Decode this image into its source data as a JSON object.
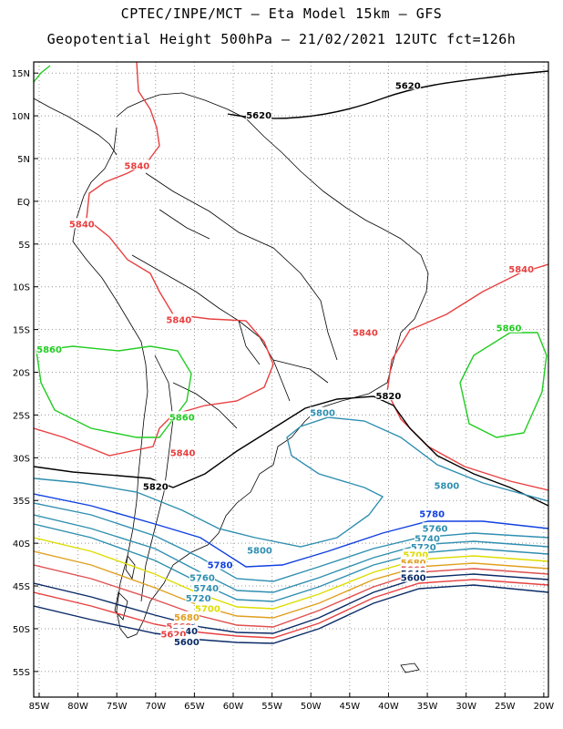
{
  "title_line1": "CPTEC/INPE/MCT –  Eta Model 15km – GFS",
  "title_line2": "Geopotential Height 500hPa – 21/02/2021 12UTC fct=126h",
  "lat_labels": [
    "15N",
    "10N",
    "5N",
    "EQ",
    "5S",
    "10S",
    "15S",
    "20S",
    "25S",
    "30S",
    "35S",
    "40S",
    "45S",
    "50S",
    "55S"
  ],
  "lon_labels": [
    "85W",
    "80W",
    "75W",
    "70W",
    "65W",
    "60W",
    "55W",
    "50W",
    "45W",
    "40W",
    "35W",
    "30W",
    "25W",
    "20W"
  ],
  "contour_labels": [
    {
      "text": "5620",
      "color": "#000000",
      "lon": -37.5,
      "lat": 13.6
    },
    {
      "text": "5620",
      "color": "#000000",
      "lon": -56.7,
      "lat": 10.1
    },
    {
      "text": "5840",
      "color": "#e84040",
      "lon": -72.4,
      "lat": 4.2
    },
    {
      "text": "5840",
      "color": "#e84040",
      "lon": -79.5,
      "lat": -2.6
    },
    {
      "text": "5840",
      "color": "#e84040",
      "lon": -67.0,
      "lat": -13.8
    },
    {
      "text": "5840",
      "color": "#e84040",
      "lon": -43.0,
      "lat": -15.3
    },
    {
      "text": "5840",
      "color": "#e84040",
      "lon": -22.9,
      "lat": -7.9
    },
    {
      "text": "5840",
      "color": "#e84040",
      "lon": -66.5,
      "lat": -29.4
    },
    {
      "text": "5860",
      "color": "#22cc22",
      "lon": -83.7,
      "lat": -17.3
    },
    {
      "text": "5860",
      "color": "#22cc22",
      "lon": -66.6,
      "lat": -25.2
    },
    {
      "text": "5860",
      "color": "#22cc22",
      "lon": -24.5,
      "lat": -14.8
    },
    {
      "text": "5820",
      "color": "#000000",
      "lon": -40.0,
      "lat": -22.7
    },
    {
      "text": "5820",
      "color": "#000000",
      "lon": -70.0,
      "lat": -33.3
    },
    {
      "text": "5800",
      "color": "#2f8fb0",
      "lon": -48.5,
      "lat": -24.7
    },
    {
      "text": "5800",
      "color": "#2f8fb0",
      "lon": -32.5,
      "lat": -33.2
    },
    {
      "text": "5800",
      "color": "#2f8fb0",
      "lon": -56.6,
      "lat": -40.8
    },
    {
      "text": "5780",
      "color": "#1040e0",
      "lon": -34.4,
      "lat": -36.5
    },
    {
      "text": "5780",
      "color": "#1040e0",
      "lon": -61.7,
      "lat": -42.5
    },
    {
      "text": "5760",
      "color": "#2f8fb0",
      "lon": -34.0,
      "lat": -38.2
    },
    {
      "text": "5760",
      "color": "#2f8fb0",
      "lon": -64.0,
      "lat": -44.0
    },
    {
      "text": "5740",
      "color": "#2f8fb0",
      "lon": -35.0,
      "lat": -39.4
    },
    {
      "text": "5740",
      "color": "#2f8fb0",
      "lon": -63.5,
      "lat": -45.2
    },
    {
      "text": "5720",
      "color": "#2f8fb0",
      "lon": -35.5,
      "lat": -40.4
    },
    {
      "text": "5720",
      "color": "#2f8fb0",
      "lon": -64.5,
      "lat": -46.4
    },
    {
      "text": "5700",
      "color": "#dddd00",
      "lon": -36.5,
      "lat": -41.3
    },
    {
      "text": "5700",
      "color": "#dddd00",
      "lon": -63.3,
      "lat": -47.6
    },
    {
      "text": "5680",
      "color": "#e0a020",
      "lon": -36.8,
      "lat": -42.2
    },
    {
      "text": "5680",
      "color": "#e0a020",
      "lon": -66.0,
      "lat": -48.6
    },
    {
      "text": "5660",
      "color": "#e05050",
      "lon": -36.8,
      "lat": -43.0
    },
    {
      "text": "5660",
      "color": "#e05050",
      "lon": -67.0,
      "lat": -49.7
    },
    {
      "text": "5640",
      "color": "#0a2a66",
      "lon": -36.8,
      "lat": -43.5
    },
    {
      "text": "5640",
      "color": "#0a2a66",
      "lon": -66.2,
      "lat": -50.2
    },
    {
      "text": "5620",
      "color": "#e84040",
      "lon": -67.7,
      "lat": -50.6
    },
    {
      "text": "5600",
      "color": "#0a2a66",
      "lon": -36.8,
      "lat": -44.0
    },
    {
      "text": "5600",
      "color": "#0a2a66",
      "lon": -66.0,
      "lat": -51.5
    }
  ]
}
